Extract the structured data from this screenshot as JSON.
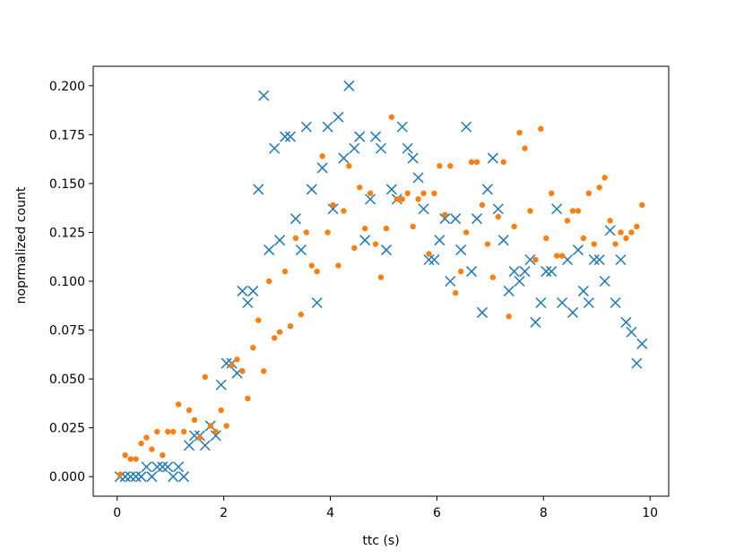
{
  "chart_data": {
    "type": "scatter",
    "title": "",
    "xlabel": "ttc (s)",
    "ylabel": "noprmalized count",
    "xlim": [
      -0.45,
      10.35
    ],
    "ylim": [
      -0.01,
      0.21
    ],
    "xticks": [
      0,
      2,
      4,
      6,
      8,
      10
    ],
    "xtick_labels": [
      "0",
      "2",
      "4",
      "6",
      "8",
      "10"
    ],
    "yticks": [
      0.0,
      0.025,
      0.05,
      0.075,
      0.1,
      0.125,
      0.15,
      0.175,
      0.2
    ],
    "ytick_labels": [
      "0.000",
      "0.025",
      "0.050",
      "0.075",
      "0.100",
      "0.125",
      "0.150",
      "0.175",
      "0.200"
    ],
    "grid": false,
    "legend": "none",
    "series": [
      {
        "marker": "x",
        "color": "#1f77b4",
        "x": [
          0.05,
          0.15,
          0.25,
          0.35,
          0.45,
          0.55,
          0.65,
          0.75,
          0.85,
          0.95,
          1.05,
          1.15,
          1.25,
          1.35,
          1.45,
          1.55,
          1.65,
          1.75,
          1.85,
          1.95,
          2.05,
          2.15,
          2.25,
          2.35,
          2.45,
          2.55,
          2.65,
          2.75,
          2.85,
          2.95,
          3.05,
          3.15,
          3.25,
          3.35,
          3.45,
          3.55,
          3.65,
          3.75,
          3.85,
          3.95,
          4.05,
          4.15,
          4.25,
          4.35,
          4.45,
          4.55,
          4.65,
          4.75,
          4.85,
          4.95,
          5.05,
          5.15,
          5.25,
          5.35,
          5.45,
          5.55,
          5.65,
          5.75,
          5.85,
          5.95,
          6.05,
          6.15,
          6.25,
          6.35,
          6.45,
          6.55,
          6.65,
          6.75,
          6.85,
          6.95,
          7.05,
          7.15,
          7.25,
          7.35,
          7.45,
          7.55,
          7.65,
          7.75,
          7.85,
          7.95,
          8.05,
          8.15,
          8.25,
          8.35,
          8.45,
          8.55,
          8.65,
          8.75,
          8.85,
          8.95,
          9.05,
          9.15,
          9.25,
          9.35,
          9.45,
          9.55,
          9.65,
          9.75,
          9.85
        ],
        "y": [
          0.0,
          0.0,
          0.0,
          0.0,
          0.0,
          0.005,
          0.0,
          0.005,
          0.005,
          0.005,
          0.0,
          0.005,
          0.0,
          0.016,
          0.021,
          0.021,
          0.016,
          0.026,
          0.021,
          0.047,
          0.058,
          0.058,
          0.053,
          0.095,
          0.089,
          0.095,
          0.147,
          0.195,
          0.116,
          0.168,
          0.121,
          0.174,
          0.174,
          0.132,
          0.116,
          0.179,
          0.147,
          0.089,
          0.158,
          0.179,
          0.137,
          0.184,
          0.163,
          0.2,
          0.168,
          0.174,
          0.121,
          0.142,
          0.174,
          0.168,
          0.116,
          0.147,
          0.142,
          0.179,
          0.168,
          0.163,
          0.153,
          0.137,
          0.111,
          0.111,
          0.121,
          0.132,
          0.1,
          0.132,
          0.116,
          0.179,
          0.105,
          0.132,
          0.084,
          0.147,
          0.163,
          0.137,
          0.121,
          0.095,
          0.105,
          0.1,
          0.105,
          0.111,
          0.079,
          0.089,
          0.105,
          0.105,
          0.137,
          0.089,
          0.111,
          0.084,
          0.116,
          0.095,
          0.089,
          0.111,
          0.111,
          0.1,
          0.126,
          0.089,
          0.111,
          0.079,
          0.074,
          0.058,
          0.068
        ]
      },
      {
        "marker": "o",
        "color": "#ff7f0e",
        "x": [
          0.05,
          0.15,
          0.25,
          0.35,
          0.45,
          0.55,
          0.65,
          0.75,
          0.85,
          0.95,
          1.05,
          1.15,
          1.25,
          1.35,
          1.45,
          1.55,
          1.65,
          1.75,
          1.85,
          1.95,
          2.05,
          2.15,
          2.25,
          2.35,
          2.45,
          2.55,
          2.65,
          2.75,
          2.85,
          2.95,
          3.05,
          3.15,
          3.25,
          3.35,
          3.45,
          3.55,
          3.65,
          3.75,
          3.85,
          3.95,
          4.05,
          4.15,
          4.25,
          4.35,
          4.45,
          4.55,
          4.65,
          4.75,
          4.85,
          4.95,
          5.05,
          5.15,
          5.25,
          5.35,
          5.45,
          5.55,
          5.65,
          5.75,
          5.85,
          5.95,
          6.05,
          6.15,
          6.25,
          6.35,
          6.45,
          6.55,
          6.65,
          6.75,
          6.85,
          6.95,
          7.05,
          7.15,
          7.25,
          7.35,
          7.45,
          7.55,
          7.65,
          7.75,
          7.85,
          7.95,
          8.05,
          8.15,
          8.25,
          8.35,
          8.45,
          8.55,
          8.65,
          8.75,
          8.85,
          8.95,
          9.05,
          9.15,
          9.25,
          9.35,
          9.45,
          9.55,
          9.65,
          9.75,
          9.85
        ],
        "y": [
          0.001,
          0.011,
          0.009,
          0.009,
          0.017,
          0.02,
          0.014,
          0.023,
          0.011,
          0.023,
          0.023,
          0.037,
          0.023,
          0.034,
          0.029,
          0.02,
          0.051,
          0.026,
          0.023,
          0.034,
          0.026,
          0.057,
          0.06,
          0.054,
          0.04,
          0.066,
          0.08,
          0.054,
          0.1,
          0.071,
          0.074,
          0.105,
          0.077,
          0.122,
          0.083,
          0.125,
          0.108,
          0.105,
          0.164,
          0.125,
          0.139,
          0.108,
          0.136,
          0.159,
          0.117,
          0.148,
          0.127,
          0.145,
          0.119,
          0.102,
          0.127,
          0.184,
          0.142,
          0.142,
          0.145,
          0.128,
          0.142,
          0.145,
          0.114,
          0.145,
          0.159,
          0.134,
          0.159,
          0.094,
          0.105,
          0.125,
          0.161,
          0.161,
          0.139,
          0.119,
          0.102,
          0.133,
          0.161,
          0.082,
          0.128,
          0.176,
          0.168,
          0.136,
          0.111,
          0.178,
          0.122,
          0.145,
          0.113,
          0.113,
          0.131,
          0.136,
          0.136,
          0.122,
          0.145,
          0.119,
          0.148,
          0.153,
          0.131,
          0.119,
          0.125,
          0.122,
          0.125,
          0.128,
          0.139
        ]
      }
    ]
  }
}
